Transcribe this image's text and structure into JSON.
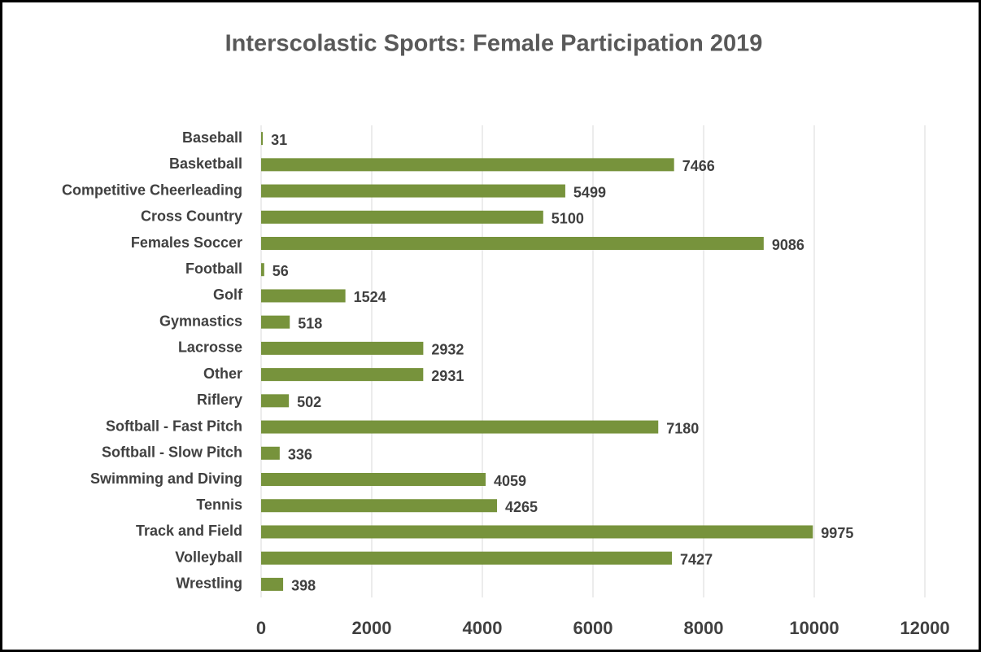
{
  "chart_data": {
    "type": "bar",
    "orientation": "horizontal",
    "title": "Interscolastic Sports: Female Participation 2019",
    "categories": [
      "Baseball",
      "Basketball",
      "Competitive Cheerleading",
      "Cross Country",
      "Females Soccer",
      "Football",
      "Golf",
      "Gymnastics",
      "Lacrosse",
      "Other",
      "Riflery",
      "Softball - Fast Pitch",
      "Softball - Slow Pitch",
      "Swimming and Diving",
      "Tennis",
      "Track and Field",
      "Volleyball",
      "Wrestling"
    ],
    "values": [
      31,
      7466,
      5499,
      5100,
      9086,
      56,
      1524,
      518,
      2932,
      2931,
      502,
      7180,
      336,
      4059,
      4265,
      9975,
      7427,
      398
    ],
    "color": "#77933c",
    "xlim": [
      0,
      12000
    ],
    "xticks": [
      0,
      2000,
      4000,
      6000,
      8000,
      10000,
      12000
    ],
    "grid": true
  }
}
